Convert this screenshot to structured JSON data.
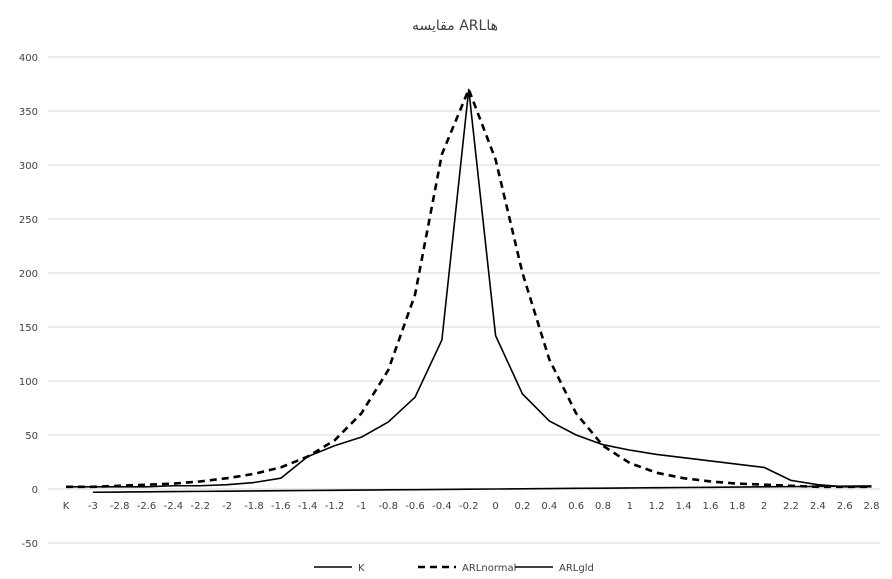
{
  "chart_data": {
    "type": "line",
    "title": "مقایسه ARLها",
    "xlabel": "",
    "ylabel": "",
    "ylim": [
      -50,
      400
    ],
    "yticks": [
      -50,
      0,
      50,
      100,
      150,
      200,
      250,
      300,
      350,
      400
    ],
    "grid": true,
    "legend_position": "bottom",
    "categories": [
      "K",
      "-3",
      "-2.8",
      "-2.6",
      "-2.4",
      "-2.2",
      "-2",
      "-1.8",
      "-1.6",
      "-1.4",
      "-1.2",
      "-1",
      "-0.8",
      "-0.6",
      "-0.4",
      "-0.2",
      "0",
      "0.2",
      "0.4",
      "0.6",
      "0.8",
      "1",
      "1.2",
      "1.4",
      "1.6",
      "1.8",
      "2",
      "2.2",
      "2.4",
      "2.6",
      "2.8"
    ],
    "series": [
      {
        "name": "K",
        "style": "solid",
        "color": "#000000",
        "values": [
          null,
          -3,
          -2.8,
          -2.6,
          -2.4,
          -2.2,
          -2,
          -1.8,
          -1.6,
          -1.4,
          -1.2,
          -1,
          -0.8,
          -0.6,
          -0.4,
          -0.2,
          0,
          0.2,
          0.4,
          0.6,
          0.8,
          1,
          1.2,
          1.4,
          1.6,
          1.8,
          2,
          2.2,
          2.4,
          2.6,
          2.8
        ]
      },
      {
        "name": "ARLnormal",
        "style": "dashed",
        "color": "#000000",
        "values": [
          2,
          2,
          3,
          4,
          5,
          7,
          10,
          14,
          20,
          30,
          45,
          70,
          110,
          180,
          310,
          370,
          305,
          200,
          120,
          70,
          40,
          24,
          15,
          10,
          7,
          5,
          4,
          3,
          2,
          2,
          2
        ]
      },
      {
        "name": "ARLgld",
        "style": "solid",
        "color": "#000000",
        "values": [
          2,
          2,
          2,
          2,
          3,
          3,
          4,
          6,
          10,
          30,
          40,
          48,
          62,
          85,
          138,
          370,
          142,
          88,
          63,
          50,
          41,
          36,
          32,
          29,
          26,
          23,
          20,
          8,
          4,
          2,
          2
        ]
      }
    ]
  }
}
